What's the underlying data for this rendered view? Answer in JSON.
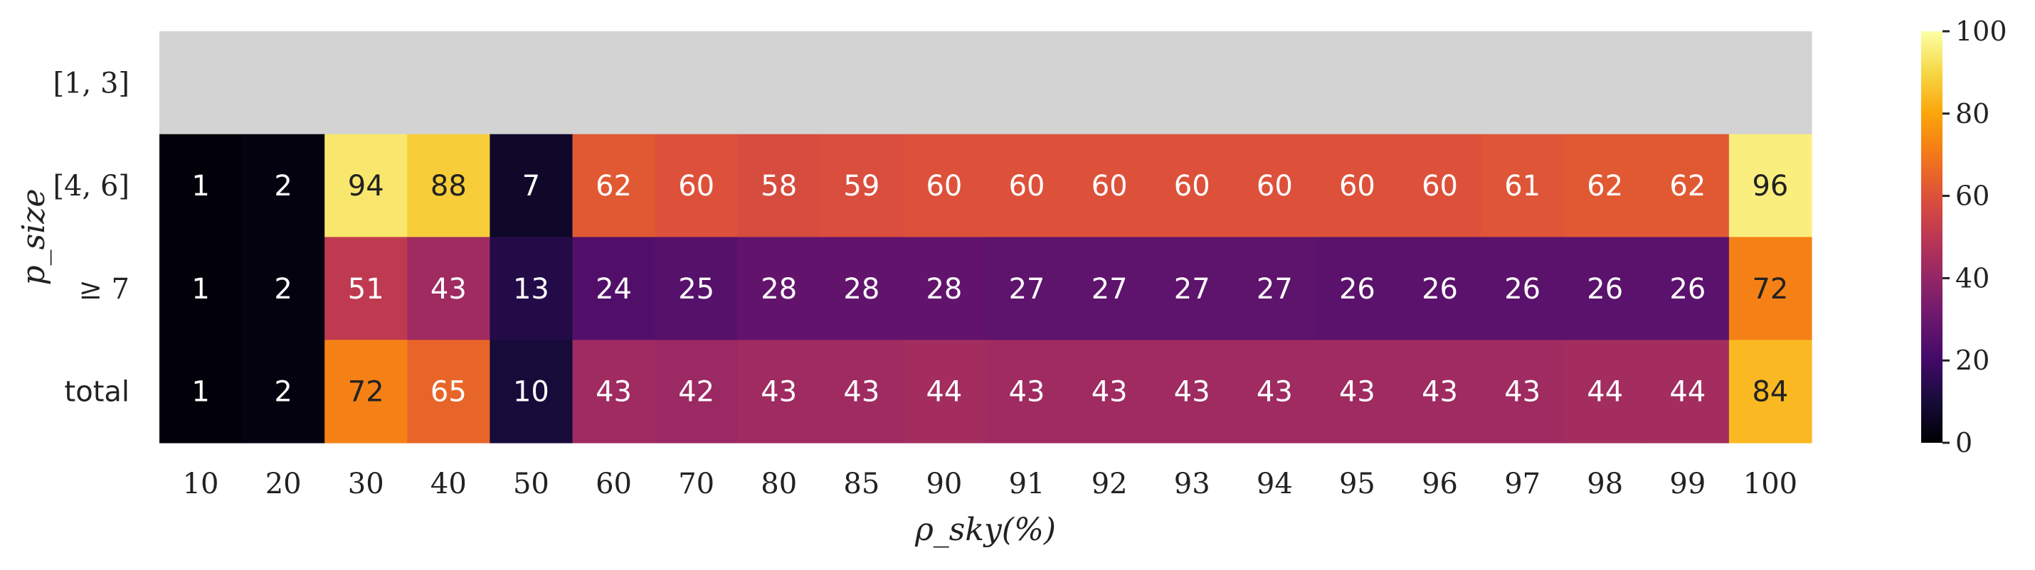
{
  "chart_data": {
    "type": "heatmap",
    "xlabel": "ρ_sky(%)",
    "ylabel": "p_size",
    "x": [
      "10",
      "20",
      "30",
      "40",
      "50",
      "60",
      "70",
      "80",
      "85",
      "90",
      "91",
      "92",
      "93",
      "94",
      "95",
      "96",
      "97",
      "98",
      "99",
      "100"
    ],
    "y": [
      "[1, 3]",
      "[4, 6]",
      "≥ 7",
      "total"
    ],
    "values": [
      [
        null,
        null,
        null,
        null,
        null,
        null,
        null,
        null,
        null,
        null,
        null,
        null,
        null,
        null,
        null,
        null,
        null,
        null,
        null,
        null
      ],
      [
        1,
        2,
        94,
        88,
        7,
        62,
        60,
        58,
        59,
        60,
        60,
        60,
        60,
        60,
        60,
        60,
        61,
        62,
        62,
        96
      ],
      [
        1,
        2,
        51,
        43,
        13,
        24,
        25,
        28,
        28,
        28,
        27,
        27,
        27,
        27,
        26,
        26,
        26,
        26,
        26,
        72
      ],
      [
        1,
        2,
        72,
        65,
        10,
        43,
        42,
        43,
        43,
        44,
        43,
        43,
        43,
        43,
        43,
        43,
        43,
        44,
        44,
        84
      ]
    ],
    "missing_color": "#d3d3d3",
    "colormap": "inferno",
    "colorbar": {
      "range": [
        0,
        100
      ],
      "ticks": [
        "0",
        "20",
        "40",
        "60",
        "80",
        "100"
      ]
    }
  }
}
